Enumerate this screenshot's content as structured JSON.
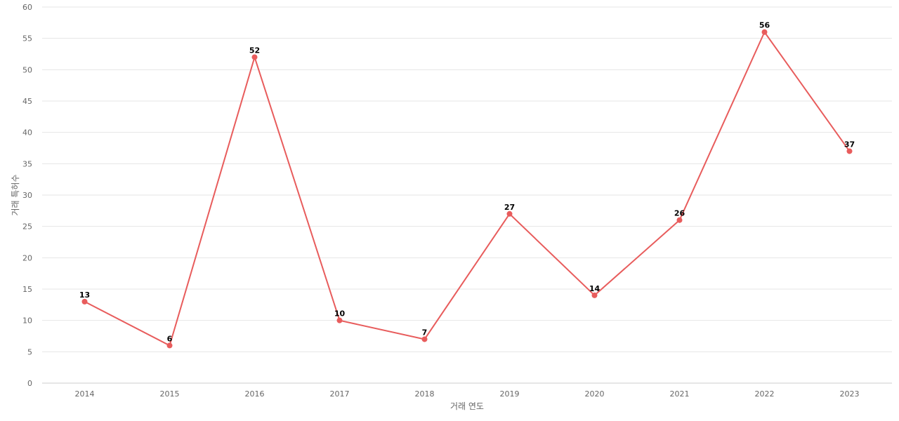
{
  "chart_data": {
    "type": "line",
    "title": "",
    "xlabel": "거래 연도",
    "ylabel": "거래 특허수",
    "categories": [
      "2014",
      "2015",
      "2016",
      "2017",
      "2018",
      "2019",
      "2020",
      "2021",
      "2022",
      "2023"
    ],
    "series": [
      {
        "values": [
          13,
          6,
          52,
          10,
          7,
          27,
          14,
          26,
          56,
          37
        ],
        "color": "#e85c5c"
      }
    ],
    "ylim": [
      0,
      60
    ],
    "yticks": [
      0,
      5,
      10,
      15,
      20,
      25,
      30,
      35,
      40,
      45,
      50,
      55,
      60
    ],
    "grid": true,
    "show_data_labels": true
  }
}
